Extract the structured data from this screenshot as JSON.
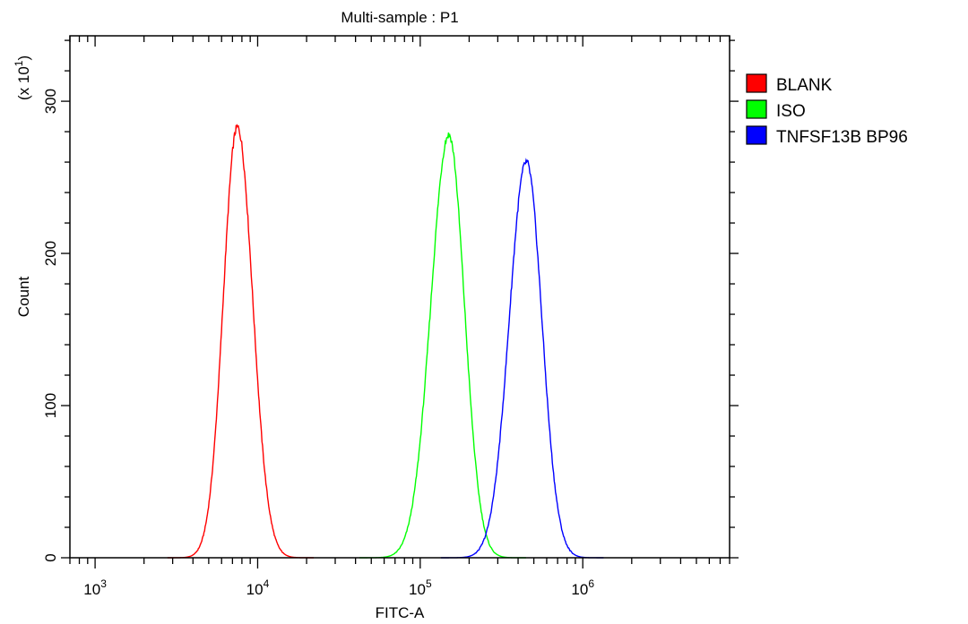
{
  "chart_data": {
    "type": "line",
    "title": "Multi-sample : P1",
    "xlabel": "FITC-A",
    "ylabel": "Count",
    "y_multiplier_label": "(x 10",
    "y_multiplier_exp": "1",
    "y_multiplier_close": ")",
    "x_scale": "log",
    "xlim": [
      700,
      8000000
    ],
    "ylim": [
      0,
      343
    ],
    "x_ticks": [
      {
        "value": 1000,
        "base": "10",
        "exp": "3"
      },
      {
        "value": 10000,
        "base": "10",
        "exp": "4"
      },
      {
        "value": 100000,
        "base": "10",
        "exp": "5"
      },
      {
        "value": 1000000,
        "base": "10",
        "exp": "6"
      }
    ],
    "y_ticks": [
      {
        "value": 0,
        "label": "0"
      },
      {
        "value": 100,
        "label": "100"
      },
      {
        "value": 200,
        "label": "200"
      },
      {
        "value": 300,
        "label": "300"
      }
    ],
    "legend_position": "right",
    "series": [
      {
        "name": "BLANK",
        "color": "#ff0000",
        "peak_x": 7500,
        "peak_y": 283,
        "log_sigma_left": 0.086,
        "log_sigma_right": 0.094
      },
      {
        "name": "ISO",
        "color": "#00ff00",
        "peak_x": 150000,
        "peak_y": 278,
        "log_sigma_left": 0.11,
        "log_sigma_right": 0.095
      },
      {
        "name": "TNFSF13B BP96",
        "color": "#0000ff",
        "peak_x": 450000,
        "peak_y": 260,
        "log_sigma_left": 0.105,
        "log_sigma_right": 0.095
      }
    ]
  }
}
